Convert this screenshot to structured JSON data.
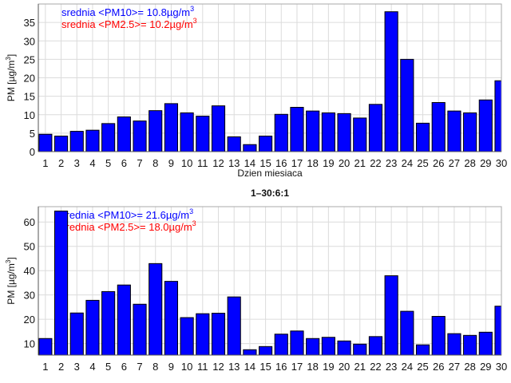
{
  "chart_data": [
    {
      "type": "bar",
      "title": "",
      "xlabel": "Dzien miesiaca",
      "ylabel": "PM [µg/m3]",
      "ylabel_base": "PM [µg/m",
      "ylabel_sup": "3",
      "ylabel_end": "]",
      "ylim": [
        0,
        40
      ],
      "xlim": [
        0.55,
        30
      ],
      "yticks": [
        0,
        5,
        10,
        15,
        20,
        25,
        30,
        35
      ],
      "categories": [
        1,
        2,
        3,
        4,
        5,
        6,
        7,
        8,
        9,
        10,
        11,
        12,
        13,
        14,
        15,
        16,
        17,
        18,
        19,
        20,
        21,
        22,
        23,
        24,
        25,
        26,
        27,
        28,
        29,
        30
      ],
      "values": [
        4.7,
        4.2,
        5.5,
        5.8,
        7.6,
        9.4,
        8.3,
        11.1,
        13.0,
        10.5,
        9.6,
        12.4,
        4.0,
        1.9,
        4.2,
        10.1,
        12.0,
        11.0,
        10.5,
        10.3,
        9.1,
        12.8,
        37.9,
        25.0,
        7.7,
        13.3,
        11.0,
        10.5,
        14.0,
        19.2
      ],
      "grid": true,
      "bar_color": "#0000ff",
      "annotations": [
        {
          "text": "srednia <PM10>= 10.8µg/m",
          "sup": "3",
          "color": "#0000ff"
        },
        {
          "text": "srednia <PM2.5>= 10.2µg/m",
          "sup": "3",
          "color": "#ff0000"
        }
      ]
    },
    {
      "type": "bar",
      "title": "1–30:6:1",
      "xlabel": "",
      "ylabel": "PM [µg/m3]",
      "ylabel_base": "PM [µg/m",
      "ylabel_sup": "3",
      "ylabel_end": "]",
      "ylim": [
        5.3,
        66.3
      ],
      "xlim": [
        0.55,
        30
      ],
      "yticks": [
        10,
        20,
        30,
        40,
        50,
        60
      ],
      "categories": [
        1,
        2,
        3,
        4,
        5,
        6,
        7,
        8,
        9,
        10,
        11,
        12,
        13,
        14,
        15,
        16,
        17,
        18,
        19,
        20,
        21,
        22,
        23,
        24,
        25,
        26,
        27,
        28,
        29,
        30
      ],
      "values": [
        12.1,
        64.5,
        22.6,
        27.8,
        31.4,
        34.1,
        26.2,
        42.9,
        35.6,
        20.7,
        22.3,
        22.5,
        29.2,
        7.5,
        8.8,
        13.9,
        15.2,
        12.1,
        12.6,
        11.1,
        9.8,
        12.9,
        37.9,
        23.3,
        9.5,
        21.2,
        14.1,
        13.4,
        14.7,
        25.4
      ],
      "grid": true,
      "bar_color": "#0000ff",
      "annotations": [
        {
          "text": "srednia <PM10>= 21.6µg/m",
          "sup": "3",
          "color": "#0000ff"
        },
        {
          "text": "srednia <PM2.5>= 18.0µg/m",
          "sup": "3",
          "color": "#ff0000"
        }
      ]
    }
  ]
}
